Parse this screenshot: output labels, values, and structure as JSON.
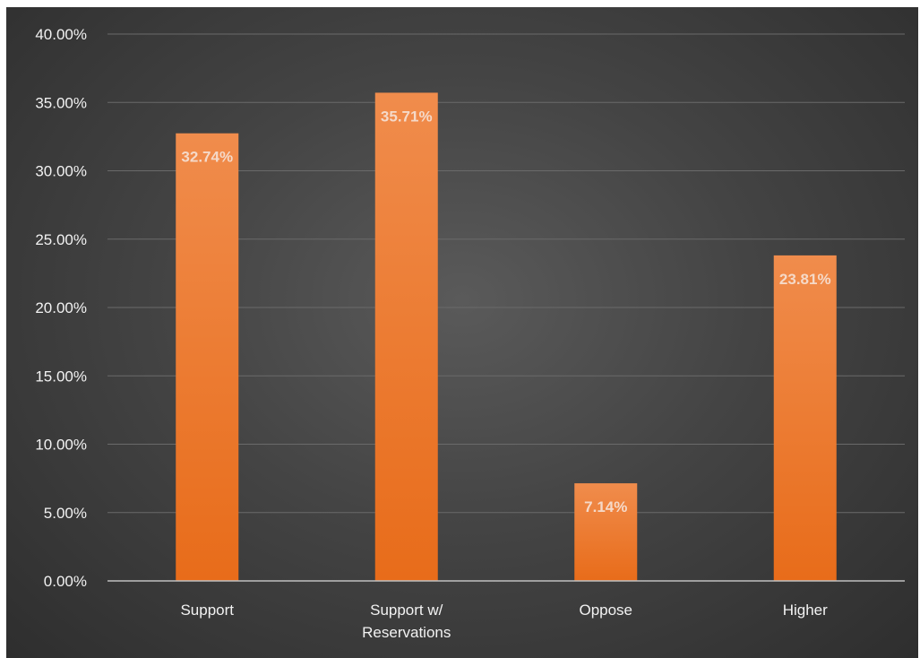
{
  "chart_data": {
    "type": "bar",
    "title": "",
    "xlabel": "",
    "ylabel": "",
    "categories": [
      [
        "Support"
      ],
      [
        "Support w/",
        "Reservations"
      ],
      [
        "Oppose"
      ],
      [
        "Higher"
      ]
    ],
    "values": [
      32.74,
      35.71,
      7.14,
      23.81
    ],
    "data_labels": [
      "32.74%",
      "35.71%",
      "7.14%",
      "23.81%"
    ],
    "ylim": [
      0,
      40
    ],
    "yticks": [
      0,
      5,
      10,
      15,
      20,
      25,
      30,
      35,
      40
    ],
    "ytick_labels": [
      "0.00%",
      "5.00%",
      "10.00%",
      "15.00%",
      "20.00%",
      "25.00%",
      "30.00%",
      "35.00%",
      "40.00%"
    ],
    "grid": true,
    "legend": "none",
    "colors": {
      "bar_top": "#f08c4c",
      "bar_bottom": "#e86c1a",
      "gridline": "#6a6a6a",
      "axis": "#bfbfbf"
    }
  }
}
